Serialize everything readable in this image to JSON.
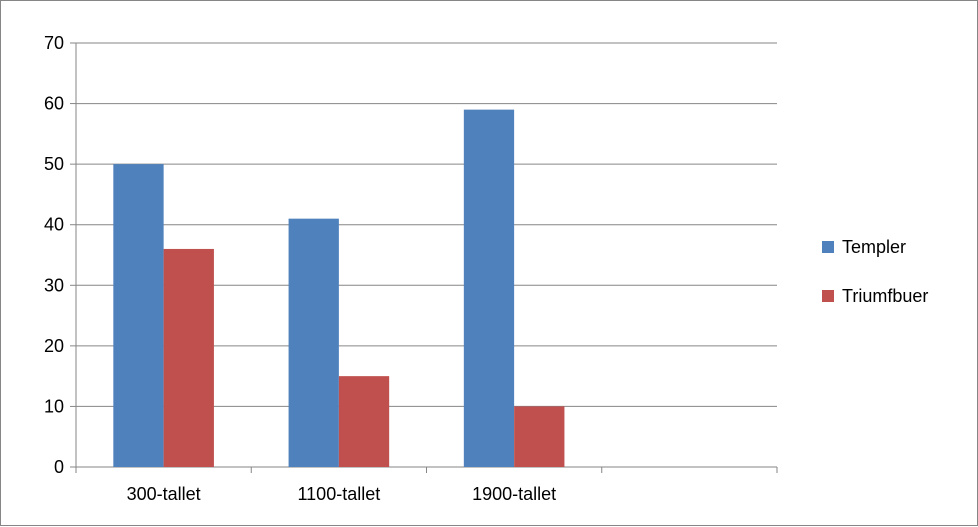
{
  "chart_data": {
    "type": "bar",
    "title": "",
    "xlabel": "",
    "ylabel": "",
    "categories": [
      "300-tallet",
      "1100-tallet",
      "1900-tallet",
      ""
    ],
    "series": [
      {
        "name": "Templer",
        "color": "#4F81BD",
        "values": [
          50,
          41,
          59,
          null
        ]
      },
      {
        "name": "Triumfbuer",
        "color": "#C0504D",
        "values": [
          36,
          15,
          10,
          null
        ]
      }
    ],
    "ylim": [
      0,
      70
    ],
    "yticks": [
      0,
      10,
      20,
      30,
      40,
      50,
      60,
      70
    ],
    "grid": true,
    "legend": "right"
  }
}
